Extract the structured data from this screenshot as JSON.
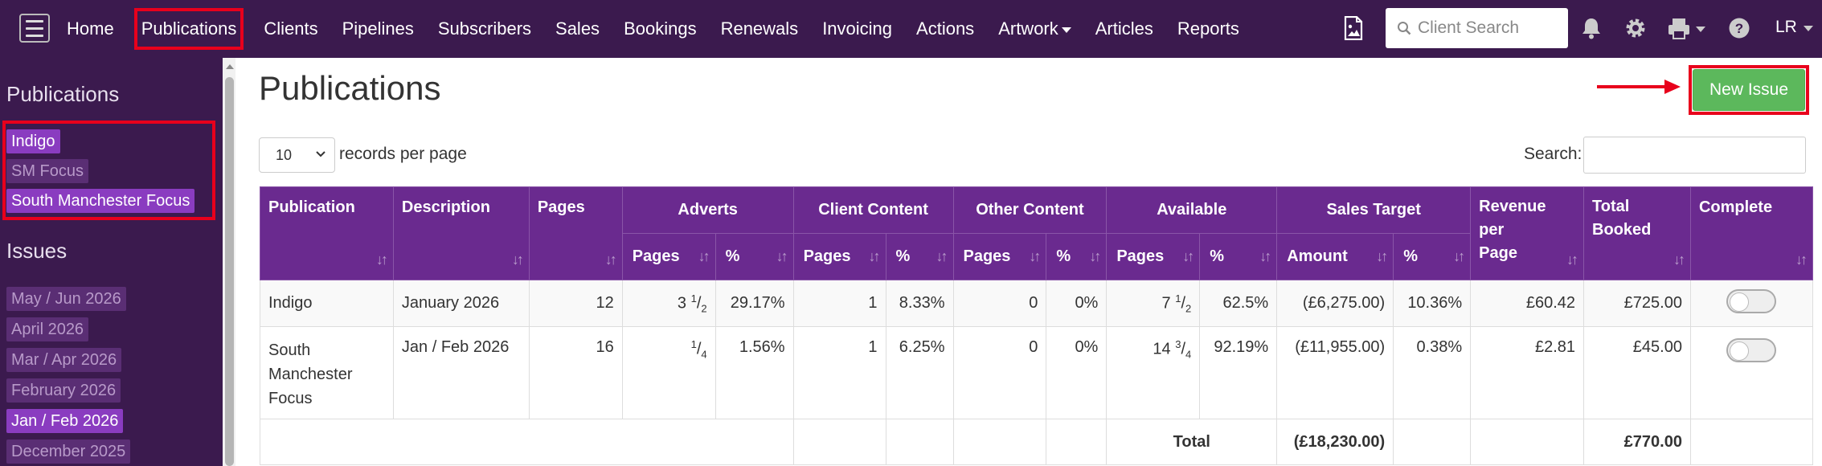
{
  "nav": {
    "items": [
      "Home",
      "Publications",
      "Clients",
      "Pipelines",
      "Subscribers",
      "Sales",
      "Bookings",
      "Renewals",
      "Invoicing",
      "Actions",
      "Artwork",
      "Articles",
      "Reports"
    ],
    "search_placeholder": "Client Search",
    "user": "LR"
  },
  "sidebar": {
    "publications_heading": "Publications",
    "publications": [
      "Indigo",
      "SM Focus",
      "South Manchester Focus"
    ],
    "issues_heading": "Issues",
    "issues": [
      "May / Jun 2026",
      "April 2026",
      "Mar / Apr 2026",
      "February 2026",
      "Jan / Feb 2026",
      "December 2025"
    ]
  },
  "main": {
    "title": "Publications",
    "new_issue_label": "New Issue",
    "records_per_page_value": "10",
    "records_per_page_label": "records per page",
    "search_label": "Search:"
  },
  "table": {
    "headers": {
      "publication": "Publication",
      "description": "Description",
      "pages": "Pages",
      "adverts": "Adverts",
      "client_content": "Client Content",
      "other_content": "Other Content",
      "available": "Available",
      "sales_target": "Sales Target",
      "revenue_per_page": "Revenue per Page",
      "total_booked": "Total Booked",
      "complete": "Complete",
      "sub_pages": "Pages",
      "sub_pct": "%",
      "sub_amount": "Amount"
    },
    "rows": [
      {
        "publication": "Indigo",
        "description": "January 2026",
        "pages": "12",
        "adverts_pages": {
          "whole": "3",
          "num": "1",
          "den": "2"
        },
        "adverts_pct": "29.17%",
        "client_pages": "1",
        "client_pct": "8.33%",
        "other_pages": "0",
        "other_pct": "0%",
        "available_pages": {
          "whole": "7",
          "num": "1",
          "den": "2"
        },
        "available_pct": "62.5%",
        "sales_amount": "(£6,275.00)",
        "sales_pct": "10.36%",
        "revenue_per_page": "£60.42",
        "total_booked": "£725.00"
      },
      {
        "publication": "South Manchester Focus",
        "description": "Jan / Feb 2026",
        "pages": "16",
        "adverts_pages": {
          "whole": "",
          "num": "1",
          "den": "4"
        },
        "adverts_pct": "1.56%",
        "client_pages": "1",
        "client_pct": "6.25%",
        "other_pages": "0",
        "other_pct": "0%",
        "available_pages": {
          "whole": "14",
          "num": "3",
          "den": "4"
        },
        "available_pct": "92.19%",
        "sales_amount": "(£11,955.00)",
        "sales_pct": "0.38%",
        "revenue_per_page": "£2.81",
        "total_booked": "£45.00"
      }
    ],
    "totals": {
      "label": "Total",
      "sales_amount": "(£18,230.00)",
      "total_booked": "£770.00"
    }
  },
  "colors": {
    "nav_bg": "#3b1a4e",
    "header_bg": "#6a2a8f",
    "tag_active": "#8a3cc0",
    "new_issue": "#5cb85c",
    "negative": "#e0001b",
    "highlight": "#e8001c"
  }
}
